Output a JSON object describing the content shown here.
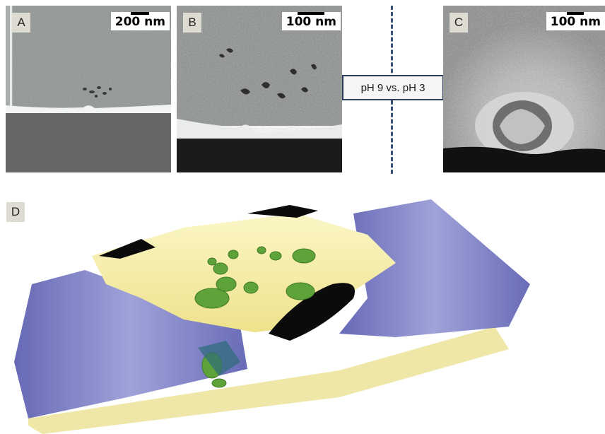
{
  "panels": {
    "a": {
      "label": "A",
      "scale": "200 nm"
    },
    "b": {
      "label": "B",
      "scale": "100 nm"
    },
    "c": {
      "label": "C",
      "scale": "100 nm"
    },
    "d": {
      "label": "D"
    }
  },
  "comparison_label": "pH 9 vs. pH 3",
  "colors": {
    "dashed_divider": "#39507a",
    "volume_blue": "#6f72c4",
    "volume_yellow": "#f3ecaa",
    "volume_green": "#5ea33a",
    "volume_black": "#0b0b0b"
  }
}
